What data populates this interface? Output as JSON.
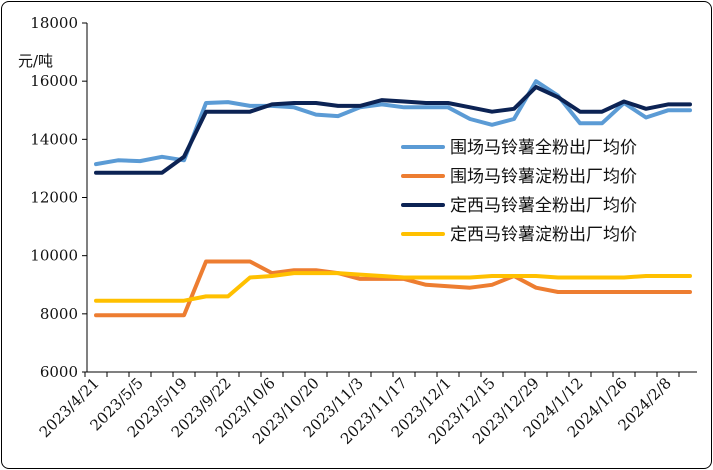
{
  "chart_data": {
    "type": "line",
    "ylabel": "元/吨",
    "ylim": [
      6000,
      18000
    ],
    "yticks": [
      6000,
      8000,
      10000,
      12000,
      14000,
      16000,
      18000
    ],
    "grid": false,
    "legend_position": "right",
    "categories": [
      "2023/4/21",
      "2023/4/28",
      "2023/5/5",
      "2023/5/12",
      "2023/5/19",
      "2023/9/15",
      "2023/9/22",
      "2023/9/29",
      "2023/10/6",
      "2023/10/13",
      "2023/10/20",
      "2023/10/27",
      "2023/11/3",
      "2023/11/10",
      "2023/11/17",
      "2023/11/24",
      "2023/12/1",
      "2023/12/8",
      "2023/12/15",
      "2023/12/22",
      "2023/12/29",
      "2024/1/5",
      "2024/1/12",
      "2024/1/19",
      "2024/1/26",
      "2024/2/2",
      "2024/2/8",
      "2024/2/15"
    ],
    "tick_labels": [
      "2023/4/21",
      "2023/5/5",
      "2023/5/19",
      "2023/9/22",
      "2023/10/6",
      "2023/10/20",
      "2023/11/3",
      "2023/11/17",
      "2023/12/1",
      "2023/12/15",
      "2023/12/29",
      "2024/1/12",
      "2024/1/26",
      "2024/2/8"
    ],
    "series": [
      {
        "name": "围场马铃薯全粉出厂均价",
        "color": "#5b9bd5",
        "values": [
          13150,
          13280,
          13250,
          13400,
          13280,
          15250,
          15280,
          15150,
          15150,
          15100,
          14850,
          14800,
          15100,
          15200,
          15100,
          15100,
          15100,
          14700,
          14500,
          14700,
          16000,
          15500,
          14550,
          14550,
          15250,
          14750,
          15000,
          15000
        ]
      },
      {
        "name": "围场马铃薯淀粉出厂均价",
        "color": "#ed7d31",
        "values": [
          7950,
          7950,
          7950,
          7950,
          7950,
          9800,
          9800,
          9800,
          9400,
          9500,
          9500,
          9400,
          9200,
          9200,
          9200,
          9000,
          8950,
          8900,
          9000,
          9300,
          8900,
          8750,
          8750,
          8750,
          8750,
          8750,
          8750,
          8750
        ]
      },
      {
        "name": "定西马铃薯全粉出厂均价",
        "color": "#0c2354",
        "values": [
          12850,
          12850,
          12850,
          12850,
          13400,
          14950,
          14950,
          14950,
          15200,
          15250,
          15250,
          15150,
          15150,
          15350,
          15300,
          15250,
          15250,
          15100,
          14950,
          15050,
          15800,
          15450,
          14950,
          14950,
          15300,
          15050,
          15200,
          15200
        ]
      },
      {
        "name": "定西马铃薯淀粉出厂均价",
        "color": "#ffc000",
        "values": [
          8450,
          8450,
          8450,
          8450,
          8450,
          8600,
          8600,
          9250,
          9300,
          9400,
          9400,
          9400,
          9350,
          9300,
          9250,
          9250,
          9250,
          9250,
          9300,
          9300,
          9300,
          9250,
          9250,
          9250,
          9250,
          9300,
          9300,
          9300
        ]
      }
    ]
  }
}
